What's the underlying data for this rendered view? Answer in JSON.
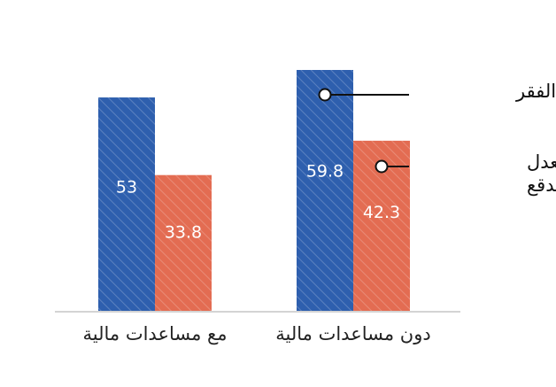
{
  "chart_data": {
    "type": "bar",
    "categories": [
      "مع مساعدات مالية",
      "دون مساعدات مالية"
    ],
    "series": [
      {
        "name": "معدل الفقر",
        "values": [
          53,
          59.8
        ],
        "color": "#2e5fae"
      },
      {
        "name": "معدل الفقر المدقع",
        "values": [
          33.8,
          42.3
        ],
        "color": "#e36c52"
      }
    ],
    "ylim": [
      0,
      65
    ],
    "grid": false,
    "legend": "callout-labels",
    "legend_labels": [
      {
        "series_index": 0,
        "lines": [
          "معدل الفقر"
        ]
      },
      {
        "series_index": 1,
        "lines": [
          "معدل",
          "الفقر المدقع"
        ]
      }
    ],
    "pattern": "diagonal-hatch"
  }
}
